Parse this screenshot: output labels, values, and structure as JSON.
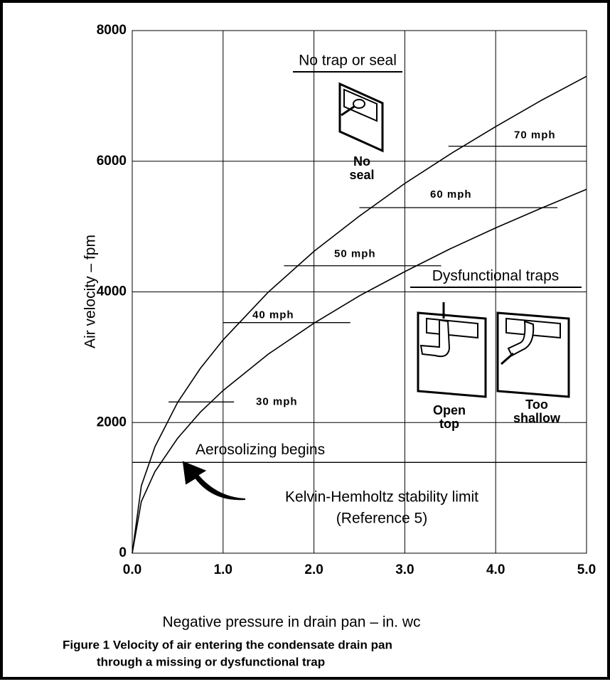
{
  "chart_data": {
    "type": "line",
    "x_label": "Negative pressure in drain pan – in. wc",
    "y_label": "Air velocity – fpm",
    "caption": [
      "Figure 1  Velocity of air entering the condensate drain pan",
      "through a missing or dysfunctional trap"
    ],
    "x": [
      0,
      0.1,
      0.25,
      0.5,
      0.75,
      1,
      1.5,
      2,
      2.5,
      3,
      3.5,
      4,
      4.5,
      5
    ],
    "series": [
      {
        "color": "#000000",
        "values": [
          0,
          1030,
          1630,
          2310,
          2830,
          3265,
          4000,
          4620,
          5160,
          5660,
          6110,
          6530,
          6930,
          7300
        ]
      },
      {
        "color": "#000000",
        "values": [
          0,
          790,
          1250,
          1760,
          2160,
          2490,
          3050,
          3520,
          3940,
          4310,
          4660,
          4980,
          5280,
          5570
        ]
      }
    ],
    "xlim": [
      0,
      5
    ],
    "ylim": [
      0,
      8000
    ],
    "xticks": [
      {
        "value": 0,
        "label": "0.0"
      },
      {
        "value": 1,
        "label": "1.0"
      },
      {
        "value": 2,
        "label": "2.0"
      },
      {
        "value": 3,
        "label": "3.0"
      },
      {
        "value": 4,
        "label": "4.0"
      },
      {
        "value": 5,
        "label": "5.0"
      }
    ],
    "yticks": [
      0,
      2000,
      4000,
      6000,
      8000
    ],
    "grid": true,
    "reference_lines": [
      {
        "label": "30 mph",
        "y": 2315,
        "x": [
          0.4,
          1.12
        ]
      },
      {
        "label": "40 mph",
        "y": 3530,
        "x": [
          1.0,
          2.4
        ]
      },
      {
        "label": "50 mph",
        "y": 4400,
        "x": [
          1.67,
          3.4
        ]
      },
      {
        "label": "60 mph",
        "y": 5290,
        "x": [
          2.5,
          4.68
        ]
      },
      {
        "label": "70 mph",
        "y": 6230,
        "x": [
          3.48,
          5.0
        ]
      },
      {
        "label": "Aerosolizing begins",
        "y": 1390,
        "x": [
          0,
          5
        ]
      }
    ],
    "annotations": [
      "No trap or seal",
      "No",
      "seal",
      "Dysfunctional traps",
      "Open",
      "top",
      "Too",
      "shallow",
      "Kelvin-Hemholtz stability limit",
      "(Reference 5)"
    ]
  }
}
